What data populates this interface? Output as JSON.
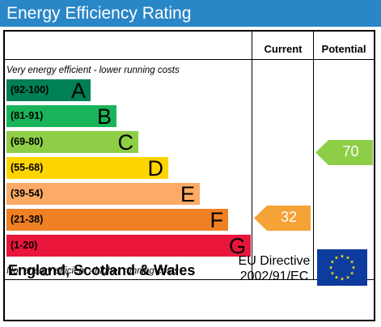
{
  "title": "Energy Efficiency Rating",
  "columns": {
    "current": "Current",
    "potential": "Potential"
  },
  "notes": {
    "top": "Very energy efficient - lower running costs",
    "bottom": "Not energy efficient - higher running costs"
  },
  "bands": [
    {
      "range": "(92-100)",
      "letter": "A",
      "color": "#008054",
      "text_color": "#000000"
    },
    {
      "range": "(81-91)",
      "letter": "B",
      "color": "#19b459",
      "text_color": "#000000"
    },
    {
      "range": "(69-80)",
      "letter": "C",
      "color": "#8dce46",
      "text_color": "#000000"
    },
    {
      "range": "(55-68)",
      "letter": "D",
      "color": "#ffd500",
      "text_color": "#000000"
    },
    {
      "range": "(39-54)",
      "letter": "E",
      "color": "#fcaa65",
      "text_color": "#000000"
    },
    {
      "range": "(21-38)",
      "letter": "F",
      "color": "#ef8023",
      "text_color": "#000000"
    },
    {
      "range": "(1-20)",
      "letter": "G",
      "color": "#e9153b",
      "text_color": "#000000"
    }
  ],
  "current": {
    "value": "32",
    "band": "F",
    "color": "#f5a236"
  },
  "potential": {
    "value": "70",
    "band": "C",
    "color": "#8dce46"
  },
  "footer": {
    "country": "England, Scotland & Wales",
    "directive_line1": "EU Directive",
    "directive_line2": "2002/91/EC",
    "flag_icon": "eu-flag-icon"
  }
}
